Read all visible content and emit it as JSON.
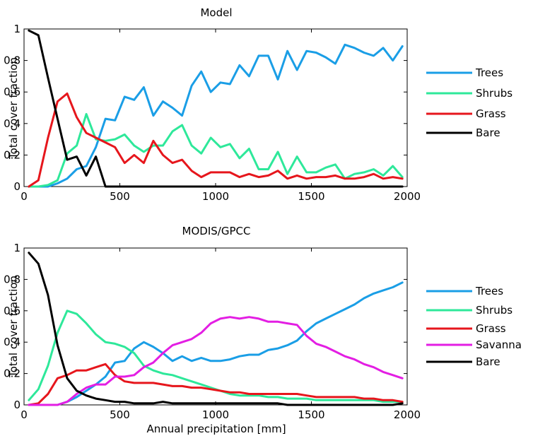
{
  "chart_data": [
    {
      "type": "line",
      "title": "Model",
      "xlabel": "",
      "ylabel": "Total cover fraction",
      "xlim": [
        0,
        2000
      ],
      "ylim": [
        0,
        1
      ],
      "xticks": [
        "0",
        "500",
        "1000",
        "1500",
        "2000"
      ],
      "yticks": [
        "0",
        "0.2",
        "0.4",
        "0.6",
        "0.8",
        "1"
      ],
      "x": [
        25,
        75,
        125,
        175,
        225,
        275,
        325,
        375,
        425,
        475,
        525,
        575,
        625,
        675,
        725,
        775,
        825,
        875,
        925,
        975,
        1025,
        1075,
        1125,
        1175,
        1225,
        1275,
        1325,
        1375,
        1425,
        1475,
        1525,
        1575,
        1625,
        1675,
        1725,
        1775,
        1825,
        1875,
        1925,
        1975
      ],
      "series": [
        {
          "name": "Trees",
          "color": "#1a9ee6",
          "values": [
            0,
            0,
            0,
            0.02,
            0.05,
            0.11,
            0.13,
            0.25,
            0.43,
            0.42,
            0.57,
            0.55,
            0.63,
            0.45,
            0.54,
            0.5,
            0.45,
            0.64,
            0.73,
            0.6,
            0.66,
            0.65,
            0.77,
            0.7,
            0.83,
            0.83,
            0.68,
            0.86,
            0.74,
            0.86,
            0.85,
            0.82,
            0.78,
            0.9,
            0.88,
            0.85,
            0.83,
            0.88,
            0.8,
            0.89
          ]
        },
        {
          "name": "Shrubs",
          "color": "#2ee89a",
          "values": [
            0,
            0,
            0.01,
            0.04,
            0.21,
            0.26,
            0.46,
            0.3,
            0.29,
            0.3,
            0.33,
            0.26,
            0.22,
            0.26,
            0.26,
            0.35,
            0.39,
            0.26,
            0.21,
            0.31,
            0.25,
            0.27,
            0.18,
            0.24,
            0.11,
            0.11,
            0.22,
            0.08,
            0.19,
            0.09,
            0.09,
            0.12,
            0.14,
            0.05,
            0.08,
            0.09,
            0.11,
            0.07,
            0.13,
            0.06
          ]
        },
        {
          "name": "Grass",
          "color": "#e6161c",
          "values": [
            0,
            0.04,
            0.31,
            0.54,
            0.59,
            0.44,
            0.34,
            0.31,
            0.28,
            0.25,
            0.15,
            0.2,
            0.15,
            0.29,
            0.2,
            0.15,
            0.17,
            0.1,
            0.06,
            0.09,
            0.09,
            0.09,
            0.06,
            0.08,
            0.06,
            0.07,
            0.1,
            0.05,
            0.07,
            0.05,
            0.06,
            0.06,
            0.07,
            0.05,
            0.05,
            0.06,
            0.08,
            0.05,
            0.06,
            0.05
          ]
        },
        {
          "name": "Bare",
          "color": "#000000",
          "values": [
            0.99,
            0.96,
            0.69,
            0.43,
            0.17,
            0.19,
            0.07,
            0.19,
            0,
            0,
            0,
            0,
            0,
            0,
            0,
            0,
            0,
            0,
            0,
            0,
            0,
            0,
            0,
            0,
            0,
            0,
            0,
            0,
            0,
            0,
            0,
            0,
            0,
            0,
            0,
            0,
            0,
            0,
            0,
            0
          ]
        }
      ],
      "legend": "right"
    },
    {
      "type": "line",
      "title": "MODIS/GPCC",
      "xlabel": "Annual precipitation [mm]",
      "ylabel": "Total cover fraction",
      "xlim": [
        0,
        2000
      ],
      "ylim": [
        0,
        1
      ],
      "xticks": [
        "0",
        "500",
        "1000",
        "1500",
        "2000"
      ],
      "yticks": [
        "0",
        "0.2",
        "0.4",
        "0.6",
        "0.8",
        "1"
      ],
      "x": [
        25,
        75,
        125,
        175,
        225,
        275,
        325,
        375,
        425,
        475,
        525,
        575,
        625,
        675,
        725,
        775,
        825,
        875,
        925,
        975,
        1025,
        1075,
        1125,
        1175,
        1225,
        1275,
        1325,
        1375,
        1425,
        1475,
        1525,
        1575,
        1625,
        1675,
        1725,
        1775,
        1825,
        1875,
        1925,
        1975
      ],
      "series": [
        {
          "name": "Trees",
          "color": "#1a9ee6",
          "values": [
            0,
            0,
            0,
            0,
            0.02,
            0.05,
            0.09,
            0.13,
            0.18,
            0.27,
            0.28,
            0.36,
            0.4,
            0.37,
            0.33,
            0.28,
            0.31,
            0.28,
            0.3,
            0.28,
            0.28,
            0.29,
            0.31,
            0.32,
            0.32,
            0.35,
            0.36,
            0.38,
            0.41,
            0.47,
            0.52,
            0.55,
            0.58,
            0.61,
            0.64,
            0.68,
            0.71,
            0.73,
            0.75,
            0.78
          ]
        },
        {
          "name": "Shrubs",
          "color": "#2ee89a",
          "values": [
            0.03,
            0.1,
            0.25,
            0.46,
            0.6,
            0.58,
            0.52,
            0.45,
            0.4,
            0.39,
            0.37,
            0.33,
            0.25,
            0.22,
            0.2,
            0.19,
            0.17,
            0.15,
            0.13,
            0.11,
            0.09,
            0.07,
            0.06,
            0.06,
            0.06,
            0.05,
            0.05,
            0.04,
            0.04,
            0.04,
            0.03,
            0.03,
            0.03,
            0.03,
            0.03,
            0.03,
            0.03,
            0.02,
            0.02,
            0.02
          ]
        },
        {
          "name": "Grass",
          "color": "#e6161c",
          "values": [
            0,
            0.01,
            0.07,
            0.17,
            0.19,
            0.22,
            0.22,
            0.24,
            0.26,
            0.19,
            0.15,
            0.14,
            0.14,
            0.14,
            0.13,
            0.12,
            0.12,
            0.11,
            0.11,
            0.1,
            0.09,
            0.08,
            0.08,
            0.07,
            0.07,
            0.07,
            0.07,
            0.07,
            0.07,
            0.06,
            0.05,
            0.05,
            0.05,
            0.05,
            0.05,
            0.04,
            0.04,
            0.03,
            0.03,
            0.02
          ]
        },
        {
          "name": "Savanna",
          "color": "#e31ee3",
          "values": [
            0,
            0,
            0,
            0,
            0.02,
            0.07,
            0.11,
            0.13,
            0.13,
            0.18,
            0.18,
            0.19,
            0.24,
            0.27,
            0.33,
            0.38,
            0.4,
            0.42,
            0.46,
            0.52,
            0.55,
            0.56,
            0.55,
            0.56,
            0.55,
            0.53,
            0.53,
            0.52,
            0.51,
            0.44,
            0.39,
            0.37,
            0.34,
            0.31,
            0.29,
            0.26,
            0.24,
            0.21,
            0.19,
            0.17
          ]
        },
        {
          "name": "Bare",
          "color": "#000000",
          "values": [
            0.97,
            0.9,
            0.7,
            0.38,
            0.17,
            0.09,
            0.06,
            0.04,
            0.03,
            0.02,
            0.02,
            0.01,
            0.01,
            0.01,
            0.02,
            0.01,
            0.01,
            0.01,
            0.01,
            0.01,
            0.01,
            0.01,
            0.01,
            0.01,
            0.01,
            0.01,
            0.01,
            0,
            0,
            0,
            0,
            0,
            0,
            0,
            0,
            0,
            0,
            0,
            0,
            0.01
          ]
        }
      ],
      "legend": "right"
    }
  ]
}
